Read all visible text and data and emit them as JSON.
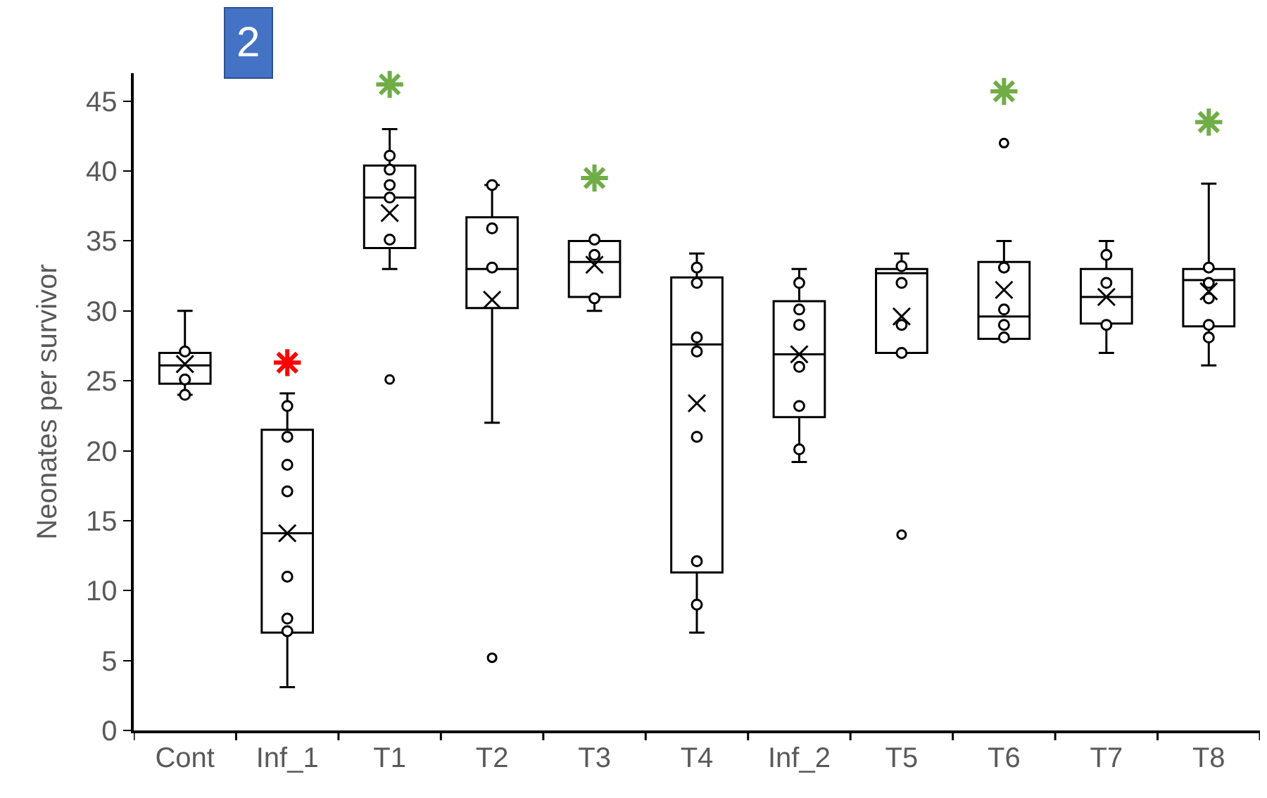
{
  "chart_data": {
    "type": "box",
    "ylabel": "Neonates per survivor",
    "categories": [
      "Cont",
      "Inf_1",
      "T1",
      "T2",
      "T3",
      "T4",
      "Inf_2",
      "T5",
      "T6",
      "T7",
      "T8"
    ],
    "boxes": [
      {
        "low": 24,
        "q1": 24.8,
        "median": 26.1,
        "q3": 27,
        "high": 30,
        "mean": 26.2
      },
      {
        "low": 3.1,
        "q1": 7,
        "median": 14.1,
        "q3": 21.5,
        "high": 24.1,
        "mean": 14.1
      },
      {
        "low": 33,
        "q1": 34.5,
        "median": 38.1,
        "q3": 40.4,
        "high": 43,
        "mean": 37,
        "outliers": [
          25.1
        ]
      },
      {
        "low": 22,
        "q1": 30.2,
        "median": 33,
        "q3": 36.7,
        "high": 39,
        "mean": 30.8,
        "outliers": [
          5.2
        ]
      },
      {
        "low": 30,
        "q1": 31,
        "median": 33.5,
        "q3": 35,
        "high": 35,
        "mean": 33.3
      },
      {
        "low": 7,
        "q1": 11.3,
        "median": 27.6,
        "q3": 32.4,
        "high": 34.1,
        "mean": 23.4
      },
      {
        "low": 19.2,
        "q1": 22.4,
        "median": 26.9,
        "q3": 30.7,
        "high": 33,
        "mean": 26.9
      },
      {
        "low": 27,
        "q1": 27,
        "median": 32.7,
        "q3": 33,
        "high": 34.1,
        "mean": 29.6,
        "outliers": [
          14
        ]
      },
      {
        "low": 28,
        "q1": 28,
        "median": 29.6,
        "q3": 33.5,
        "high": 35,
        "mean": 31.5,
        "outliers": [
          42
        ]
      },
      {
        "low": 27,
        "q1": 29.1,
        "median": 31,
        "q3": 33,
        "high": 35,
        "mean": 31
      },
      {
        "low": 26.1,
        "q1": 28.9,
        "median": 32.2,
        "q3": 33,
        "high": 39.1,
        "mean": 31.4
      }
    ],
    "series": [
      {
        "type": "scatter",
        "marker": "circle",
        "color": "#000000",
        "x": [
          "Cont",
          "Cont",
          "Cont",
          "Cont",
          "Inf_1",
          "Inf_1",
          "Inf_1",
          "Inf_1",
          "Inf_1",
          "Inf_1",
          "Inf_1",
          "T1",
          "T1",
          "T1",
          "T1",
          "T1",
          "T2",
          "T2",
          "T2",
          "T3",
          "T3",
          "T3",
          "T3",
          "T4",
          "T4",
          "T4",
          "T4",
          "T4",
          "T4",
          "T4",
          "Inf_2",
          "Inf_2",
          "Inf_2",
          "Inf_2",
          "Inf_2",
          "Inf_2",
          "T5",
          "T5",
          "T5",
          "T5",
          "T6",
          "T6",
          "T6",
          "T6",
          "T7",
          "T7",
          "T7",
          "T7",
          "T8",
          "T8",
          "T8",
          "T8",
          "T8"
        ],
        "values": [
          27.1,
          null,
          25.1,
          24,
          23.2,
          21,
          19,
          17.1,
          11,
          8,
          7.1,
          41.1,
          40.1,
          39,
          38.1,
          35.1,
          39,
          35.9,
          33.1,
          35.1,
          34,
          null,
          30.9,
          33.1,
          32,
          28.1,
          27.1,
          21,
          12.1,
          9,
          32,
          30.1,
          29,
          26,
          23.2,
          20.1,
          33.2,
          32,
          29,
          27,
          33.1,
          30.1,
          29,
          28.1,
          34,
          32,
          null,
          29,
          33.1,
          32,
          30.9,
          29,
          28.1
        ]
      },
      {
        "type": "scatter",
        "marker": "cross",
        "color": "#ff0000",
        "x": [
          "Inf_1"
        ],
        "values": [
          26.3
        ]
      },
      {
        "type": "scatter",
        "marker": "cross",
        "color": "#70ad47",
        "x": [
          "T1",
          "T3",
          "T6",
          "T8"
        ],
        "values": [
          46.2,
          39.5,
          45.7,
          43.5
        ]
      }
    ],
    "ylim": [
      0,
      47
    ],
    "yticks": [
      0,
      5,
      10,
      15,
      20,
      25,
      30,
      35,
      40,
      45
    ],
    "annotations": [
      "2"
    ]
  }
}
